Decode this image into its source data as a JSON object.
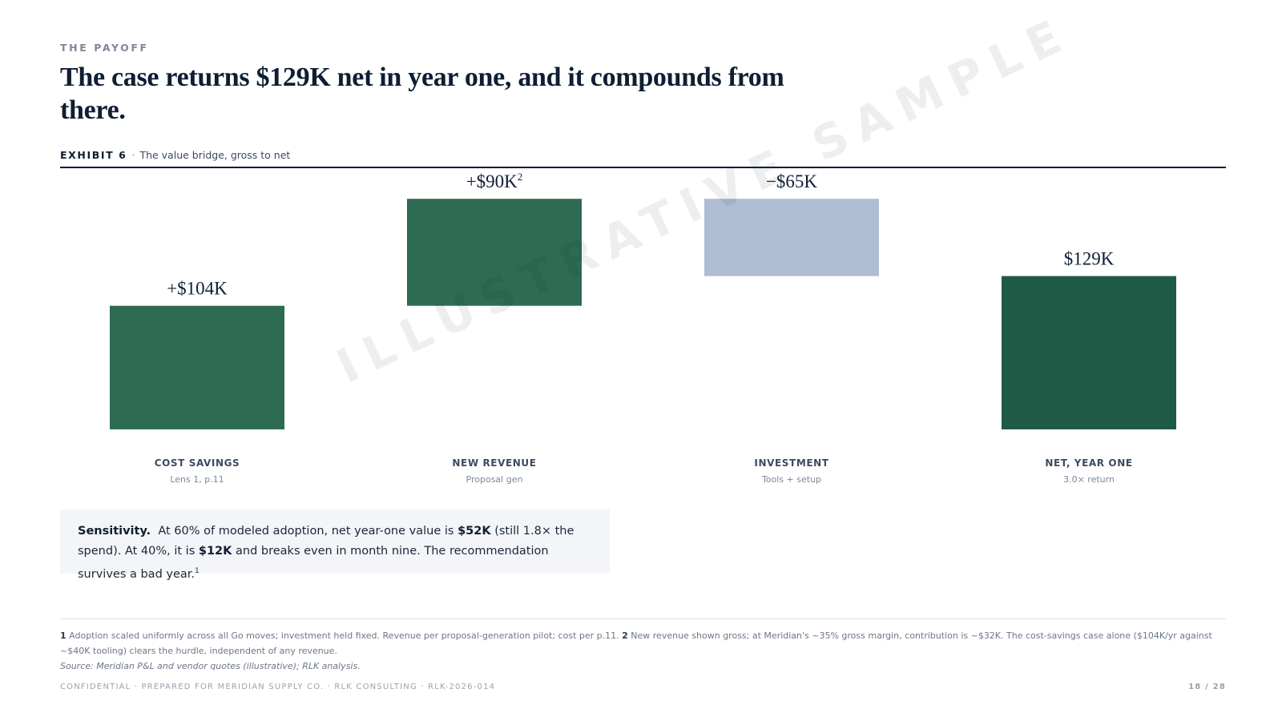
{
  "eyebrow": "THE PAYOFF",
  "headline": "The case returns $129K net in year one, and it compounds from there.",
  "exhibit": {
    "label": "EXHIBIT 6",
    "separator": "·",
    "title": "The value bridge, gross to net"
  },
  "watermark": "ILLUSTRATIVE SAMPLE",
  "chart_data": {
    "type": "bar",
    "subtype": "waterfall",
    "unit": "$K",
    "categories": [
      "COST SAVINGS",
      "NEW REVENUE",
      "INVESTMENT",
      "NET, YEAR ONE"
    ],
    "sublabels": [
      "Lens 1, p.11",
      "Proposal gen",
      "Tools + setup",
      "3.0× return"
    ],
    "values": [
      104,
      90,
      -65,
      129
    ],
    "data_labels": [
      "+$104K",
      "+$90K",
      "−$65K",
      "$129K"
    ],
    "footnote_marks": [
      "",
      "2",
      "",
      ""
    ],
    "kinds": [
      "increase",
      "increase",
      "decrease",
      "total"
    ],
    "colors": {
      "increase": "#2e6b53",
      "decrease": "#aebcd4",
      "total": "#1e5a46"
    },
    "ylim": [
      0,
      194
    ],
    "grid": false,
    "legend": "none"
  },
  "callout": {
    "lead": "Sensitivity.",
    "t1": "At 60% of modeled adoption, net year-one value is",
    "v1": "$52K",
    "t2": "(still 1.8× the spend). At 40%, it is",
    "v2": "$12K",
    "t3": "and breaks even in month nine. The recommendation survives a bad year.",
    "mark": "1"
  },
  "footnotes": {
    "n1": "1",
    "f1": "Adoption scaled uniformly across all Go moves; investment held fixed. Revenue per proposal-generation pilot; cost per p.11.",
    "n2": "2",
    "f2": "New revenue shown gross; at Meridian's ~35% gross margin, contribution is ~$32K. The cost-savings case alone ($104K/yr against ~$40K tooling) clears the hurdle, independent of any revenue.",
    "source": "Source: Meridian P&L and vendor quotes (illustrative); RLK analysis."
  },
  "footer": {
    "left": "CONFIDENTIAL · PREPARED FOR MERIDIAN SUPPLY CO. · RLK CONSULTING · RLK-2026-014",
    "page": "18 / 28"
  }
}
